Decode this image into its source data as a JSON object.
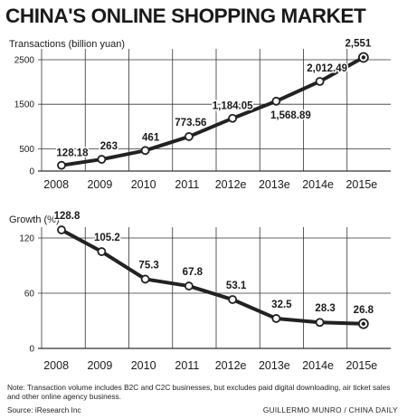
{
  "title": "CHINA'S ONLINE SHOPPING MARKET",
  "colors": {
    "line": "#222222",
    "grid": "#333333",
    "marker_fill": "#ffffff",
    "last_marker_dot": "#222222"
  },
  "chart_data": [
    {
      "type": "line",
      "ylabel": "Transactions (billion yuan)",
      "categories": [
        "2008",
        "2009",
        "2010",
        "2011",
        "2012e",
        "2013e",
        "2014e",
        "2015e"
      ],
      "yticks": [
        0,
        500,
        1500,
        2500
      ],
      "ylim": [
        0,
        2500
      ],
      "grid": true,
      "series": [
        {
          "values": [
            128.18,
            263,
            461,
            773.56,
            1184.05,
            1568.89,
            2012.49,
            2551
          ]
        }
      ],
      "data_labels": [
        "128.18",
        "263",
        "461",
        "773.56",
        "1,184.05",
        "1,568.89",
        "2,012.49",
        "2,551"
      ]
    },
    {
      "type": "line",
      "ylabel": "Growth (%)",
      "categories": [
        "2008",
        "2009",
        "2010",
        "2011",
        "2012e",
        "2013e",
        "2014e",
        "2015e"
      ],
      "yticks": [
        0,
        60,
        120
      ],
      "ylim": [
        0,
        120
      ],
      "grid": true,
      "series": [
        {
          "values": [
            128.8,
            105.2,
            75.3,
            67.8,
            53.1,
            32.5,
            28.3,
            26.8
          ]
        }
      ],
      "data_labels": [
        "128.8",
        "105.2",
        "75.3",
        "67.8",
        "53.1",
        "32.5",
        "28.3",
        "26.8"
      ]
    }
  ],
  "note": "Note: Transaction volume includes B2C and C2C businesses, but excludes paid digital downloading, air ticket sales and other online agency business.",
  "source": "Source: iResearch Inc",
  "credit": "GUILLERMO MUNRO / CHINA DAILY"
}
